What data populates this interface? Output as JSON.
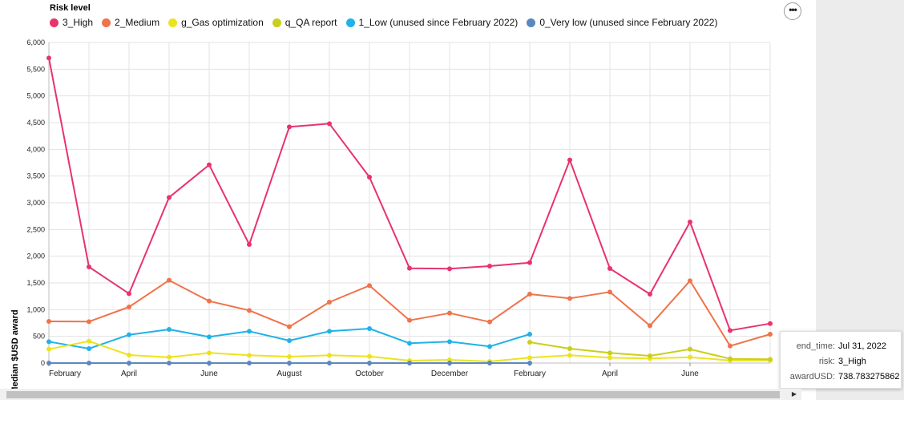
{
  "legend": {
    "title": "Risk level",
    "items": [
      {
        "label": "3_High",
        "color": "#e8336d"
      },
      {
        "label": "2_Medium",
        "color": "#f0734a"
      },
      {
        "label": "g_Gas optimization",
        "color": "#ece31f"
      },
      {
        "label": "q_QA report",
        "color": "#c9cf1a"
      },
      {
        "label": "1_Low (unused since February 2022)",
        "color": "#20b2e8"
      },
      {
        "label": "0_Very low (unused since February 2022)",
        "color": "#5a88c0"
      }
    ]
  },
  "menu": {
    "icon": "ellipsis-icon",
    "label": "•••"
  },
  "tooltip": {
    "rows": [
      {
        "key": "end_time:",
        "value": "Jul 31, 2022"
      },
      {
        "key": "risk:",
        "value": "3_High"
      },
      {
        "key": "awardUSD:",
        "value": "738.783275862"
      }
    ]
  },
  "chart_data": {
    "type": "line",
    "ylabel": "Median $USD award",
    "ylim": [
      0,
      6000
    ],
    "yticks": [
      0,
      500,
      1000,
      1500,
      2000,
      2500,
      3000,
      3500,
      4000,
      4500,
      5000,
      5500,
      6000
    ],
    "ytick_labels": [
      "0",
      "500",
      "1,000",
      "1,500",
      "2,000",
      "2,500",
      "3,000",
      "3,500",
      "4,000",
      "4,500",
      "5,000",
      "5,500",
      "6,000"
    ],
    "x": [
      "2021-02",
      "2021-03",
      "2021-04",
      "2021-05",
      "2021-06",
      "2021-07",
      "2021-08",
      "2021-09",
      "2021-10",
      "2021-11",
      "2021-12",
      "2022-01",
      "2022-02",
      "2022-03",
      "2022-04",
      "2022-05",
      "2022-06",
      "2022-07",
      "2022-08"
    ],
    "xticks": [
      {
        "x": "2021-02",
        "label": "February"
      },
      {
        "x": "2021-04",
        "label": "April"
      },
      {
        "x": "2021-06",
        "label": "June"
      },
      {
        "x": "2021-08",
        "label": "August"
      },
      {
        "x": "2021-10",
        "label": "October"
      },
      {
        "x": "2021-12",
        "label": "December"
      },
      {
        "x": "2022-02",
        "label": "February"
      },
      {
        "x": "2022-04",
        "label": "April"
      },
      {
        "x": "2022-06",
        "label": "June"
      }
    ],
    "grid": true,
    "legend_position": "top-left",
    "series": [
      {
        "name": "3_High",
        "color": "#e8336d",
        "show_points": true,
        "values": [
          5710,
          1800,
          1300,
          3100,
          3710,
          2220,
          4420,
          4480,
          3480,
          1775,
          1765,
          1815,
          1880,
          3800,
          1770,
          1290,
          2640,
          610,
          739
        ]
      },
      {
        "name": "2_Medium",
        "color": "#f0734a",
        "show_points": true,
        "values": [
          780,
          775,
          1050,
          1550,
          1160,
          985,
          680,
          1140,
          1450,
          800,
          935,
          770,
          1290,
          1210,
          1330,
          700,
          1540,
          320,
          540
        ]
      },
      {
        "name": "1_Low (unused since February 2022)",
        "color": "#20b2e8",
        "show_points": true,
        "values": [
          400,
          270,
          530,
          630,
          490,
          595,
          420,
          595,
          645,
          370,
          400,
          310,
          540,
          null,
          null,
          null,
          null,
          null,
          null
        ]
      },
      {
        "name": "g_Gas optimization",
        "color": "#ece31f",
        "show_points": true,
        "values": [
          260,
          410,
          150,
          110,
          190,
          145,
          120,
          145,
          125,
          45,
          60,
          30,
          100,
          145,
          100,
          85,
          110,
          50,
          50
        ]
      },
      {
        "name": "q_QA report",
        "color": "#c9cf1a",
        "show_points": true,
        "values": [
          null,
          null,
          null,
          null,
          null,
          null,
          null,
          null,
          null,
          null,
          null,
          null,
          390,
          270,
          190,
          135,
          260,
          80,
          70
        ]
      },
      {
        "name": "0_Very low (unused since February 2022)",
        "color": "#5a88c0",
        "show_points": true,
        "values": [
          0,
          0,
          0,
          0,
          0,
          0,
          0,
          0,
          0,
          0,
          0,
          0,
          0,
          null,
          null,
          null,
          null,
          null,
          null
        ]
      }
    ]
  }
}
